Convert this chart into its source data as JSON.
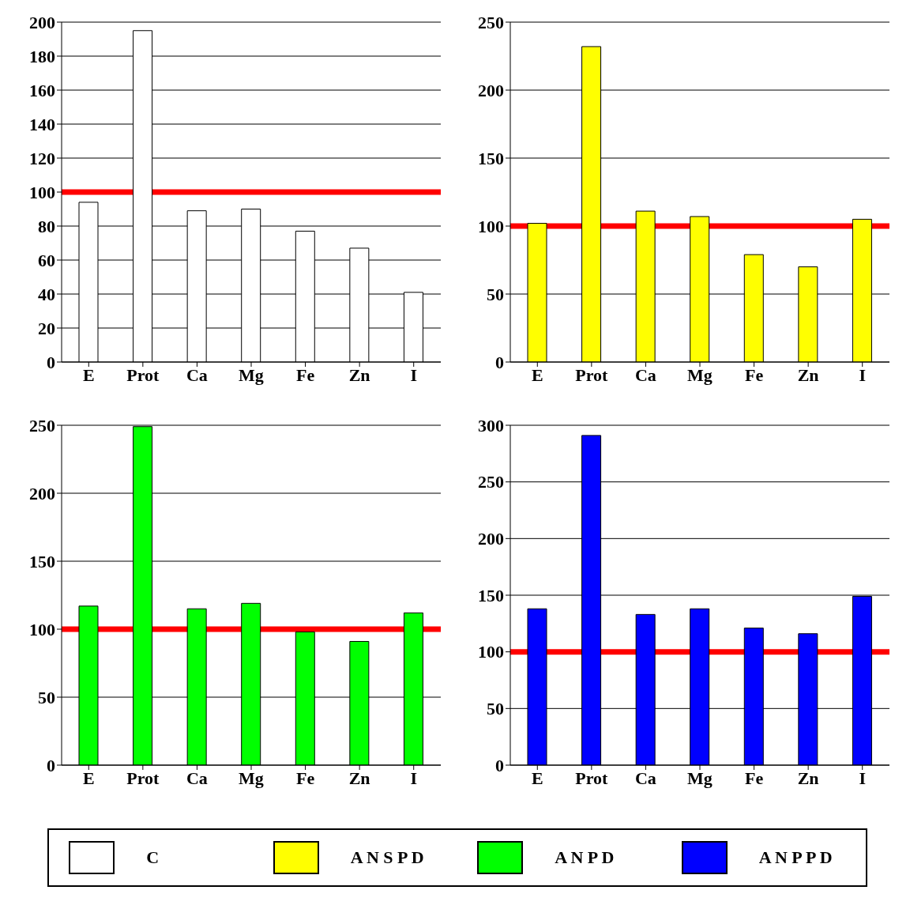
{
  "chart_data": [
    {
      "type": "bar",
      "categories": [
        "E",
        "Prot",
        "Ca",
        "Mg",
        "Fe",
        "Zn",
        "I"
      ],
      "series": [
        {
          "name": "C",
          "color": "#ffffff",
          "values": [
            94,
            195,
            89,
            90,
            77,
            67,
            41
          ]
        }
      ],
      "ylim": [
        0,
        200
      ],
      "yticks": [
        0,
        20,
        40,
        60,
        80,
        100,
        120,
        140,
        160,
        180,
        200
      ],
      "grid": "y",
      "legend": "bottom",
      "ref_lines": [
        {
          "axis": "y",
          "value": 100,
          "color": "#ff0000"
        }
      ]
    },
    {
      "type": "bar",
      "categories": [
        "E",
        "Prot",
        "Ca",
        "Mg",
        "Fe",
        "Zn",
        "I"
      ],
      "series": [
        {
          "name": "A N S P D",
          "color": "#ffff00",
          "values": [
            102,
            232,
            111,
            107,
            79,
            70,
            105
          ]
        }
      ],
      "ylim": [
        0,
        250
      ],
      "yticks": [
        0,
        50,
        100,
        150,
        200,
        250
      ],
      "grid": "y",
      "legend": "bottom",
      "ref_lines": [
        {
          "axis": "y",
          "value": 100,
          "color": "#ff0000"
        }
      ]
    },
    {
      "type": "bar",
      "categories": [
        "E",
        "Prot",
        "Ca",
        "Mg",
        "Fe",
        "Zn",
        "I"
      ],
      "series": [
        {
          "name": "A N P D",
          "color": "#00ff00",
          "values": [
            117,
            249,
            115,
            119,
            98,
            91,
            112
          ]
        }
      ],
      "ylim": [
        0,
        250
      ],
      "yticks": [
        0,
        50,
        100,
        150,
        200,
        250
      ],
      "grid": "y",
      "legend": "bottom",
      "ref_lines": [
        {
          "axis": "y",
          "value": 100,
          "color": "#ff0000"
        }
      ]
    },
    {
      "type": "bar",
      "categories": [
        "E",
        "Prot",
        "Ca",
        "Mg",
        "Fe",
        "Zn",
        "I"
      ],
      "series": [
        {
          "name": "A N P P D",
          "color": "#0000ff",
          "values": [
            138,
            291,
            133,
            138,
            121,
            116,
            149
          ]
        }
      ],
      "ylim": [
        0,
        300
      ],
      "yticks": [
        0,
        50,
        100,
        150,
        200,
        250,
        300
      ],
      "grid": "y",
      "legend": "bottom",
      "ref_lines": [
        {
          "axis": "y",
          "value": 100,
          "color": "#ff0000"
        }
      ]
    }
  ]
}
